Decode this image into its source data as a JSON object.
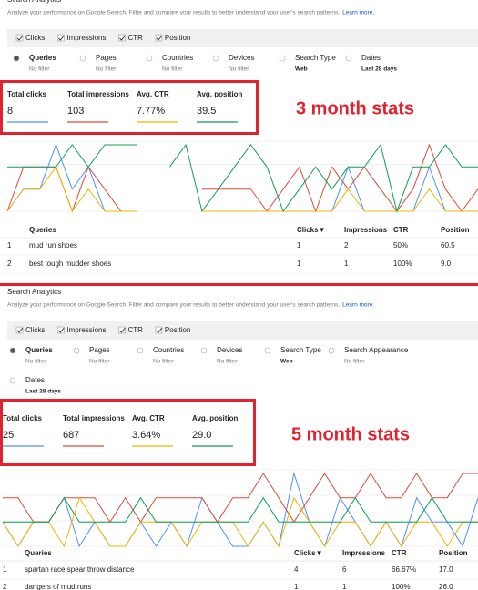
{
  "panels": [
    {
      "title": "Search Analytics",
      "description": "Analyze your performance on Google Search. Filter and compare your results to better understand your user's search patterns.",
      "learn_more": "Learn more.",
      "toggles": [
        "Clicks",
        "Impressions",
        "CTR",
        "Position"
      ],
      "filters": [
        {
          "label": "Queries",
          "value": "No filter"
        },
        {
          "label": "Pages",
          "value": "No filter"
        },
        {
          "label": "Countries",
          "value": "No filter"
        },
        {
          "label": "Devices",
          "value": "No filter"
        },
        {
          "label": "Search Type",
          "value": "Web"
        },
        {
          "label": "Dates",
          "value": "Last 28 days"
        }
      ],
      "stats": [
        {
          "label": "Total clicks",
          "value": "8",
          "color": "#4d90fe"
        },
        {
          "label": "Total impressions",
          "value": "103",
          "color": "#dd4b39"
        },
        {
          "label": "Avg. CTR",
          "value": "7.77%",
          "color": "#f4b400"
        },
        {
          "label": "Avg. position",
          "value": "39.5",
          "color": "#0f9d58"
        }
      ],
      "annotation": "3 month stats",
      "trend": {
        "series": [
          {
            "color": "#4d90fe",
            "values": [
              0,
              1,
              1,
              3,
              1,
              2,
              0,
              0,
              0,
              null,
              null,
              null,
              0,
              0,
              0,
              0,
              0,
              0,
              0,
              0,
              0,
              2,
              0,
              0,
              0,
              0,
              2,
              0,
              0,
              0
            ]
          },
          {
            "color": "#dd4b39",
            "values": [
              0,
              2,
              2,
              2,
              0,
              2,
              1,
              0,
              0,
              null,
              null,
              null,
              1,
              1,
              1,
              1,
              0,
              1,
              2,
              0,
              2,
              1,
              2,
              1,
              0,
              1,
              3,
              1,
              0,
              1
            ]
          },
          {
            "color": "#f4b400",
            "values": [
              0,
              1,
              1,
              2,
              0,
              1,
              0,
              0,
              0,
              null,
              null,
              null,
              0,
              0,
              0,
              0,
              0,
              0,
              0,
              0,
              0,
              1,
              0,
              0,
              0,
              0,
              1,
              0,
              0,
              0
            ]
          },
          {
            "color": "#0f9d58",
            "values": [
              2,
              2,
              2,
              2,
              3,
              2,
              3,
              3,
              3,
              null,
              2,
              3,
              0,
              1,
              2,
              3,
              2,
              0,
              1,
              2,
              1,
              2,
              2,
              3,
              0,
              2,
              2,
              3,
              2,
              2
            ]
          }
        ]
      },
      "table": {
        "headers": [
          "Queries",
          "Clicks▼",
          "Impressions",
          "CTR",
          "Position"
        ],
        "rows": [
          [
            "1",
            "mud run shoes",
            "1",
            "2",
            "50%",
            "60.5"
          ],
          [
            "2",
            "best tough mudder shoes",
            "1",
            "1",
            "100%",
            "9.0"
          ]
        ]
      }
    },
    {
      "title": "Search Analytics",
      "description": "Analyze your performance on Google Search. Filter and compare your results to better understand your user's search patterns.",
      "learn_more": "Learn more.",
      "toggles": [
        "Clicks",
        "Impressions",
        "CTR",
        "Position"
      ],
      "filters": [
        {
          "label": "Queries",
          "value": "No filter"
        },
        {
          "label": "Pages",
          "value": "No filter"
        },
        {
          "label": "Countries",
          "value": "No filter"
        },
        {
          "label": "Devices",
          "value": "No filter"
        },
        {
          "label": "Search Type",
          "value": "Web"
        },
        {
          "label": "Search Appearance",
          "value": "No filter"
        },
        {
          "label": "Dates",
          "value": "Last 28 days"
        }
      ],
      "stats": [
        {
          "label": "Total clicks",
          "value": "25",
          "color": "#4d90fe"
        },
        {
          "label": "Total impressions",
          "value": "687",
          "color": "#dd4b39"
        },
        {
          "label": "Avg. CTR",
          "value": "3.64%",
          "color": "#f4b400"
        },
        {
          "label": "Avg. position",
          "value": "29.0",
          "color": "#0f9d58"
        }
      ],
      "annotation": "5 month stats",
      "trend": {
        "series": [
          {
            "color": "#4d90fe",
            "values": [
              1,
              0,
              1,
              1,
              2,
              0,
              1,
              0,
              0,
              1,
              0,
              1,
              0,
              2,
              1,
              0,
              0,
              1,
              0,
              3,
              1,
              0,
              2,
              1,
              0,
              1,
              0,
              2,
              1,
              1,
              0,
              2
            ]
          },
          {
            "color": "#dd4b39",
            "values": [
              2,
              2,
              1,
              1,
              2,
              2,
              2,
              1,
              2,
              1,
              2,
              2,
              2,
              2,
              1,
              2,
              2,
              3,
              2,
              1,
              2,
              3,
              2,
              2,
              3,
              2,
              2,
              3,
              2,
              2,
              3,
              3
            ]
          },
          {
            "color": "#f4b400",
            "values": [
              1,
              0,
              1,
              1,
              0,
              2,
              1,
              0,
              0,
              1,
              1,
              1,
              0,
              1,
              1,
              1,
              0,
              1,
              0,
              2,
              1,
              0,
              1,
              1,
              0,
              1,
              0,
              1,
              1,
              0,
              1,
              1
            ]
          },
          {
            "color": "#0f9d58",
            "values": [
              1,
              1,
              1,
              1,
              2,
              1,
              1,
              1,
              1,
              2,
              1,
              1,
              1,
              1,
              1,
              1,
              1,
              2,
              1,
              1,
              1,
              1,
              1,
              2,
              1,
              1,
              1,
              1,
              2,
              1,
              1,
              1
            ]
          }
        ]
      },
      "table": {
        "headers": [
          "Queries",
          "Clicks▼",
          "Impressions",
          "CTR",
          "Position"
        ],
        "rows": [
          [
            "1",
            "spartan race spear throw distance",
            "4",
            "6",
            "66.67%",
            "17.0"
          ],
          [
            "2",
            "dangers of mud runs",
            "1",
            "1",
            "100%",
            "26.0"
          ]
        ]
      }
    }
  ]
}
